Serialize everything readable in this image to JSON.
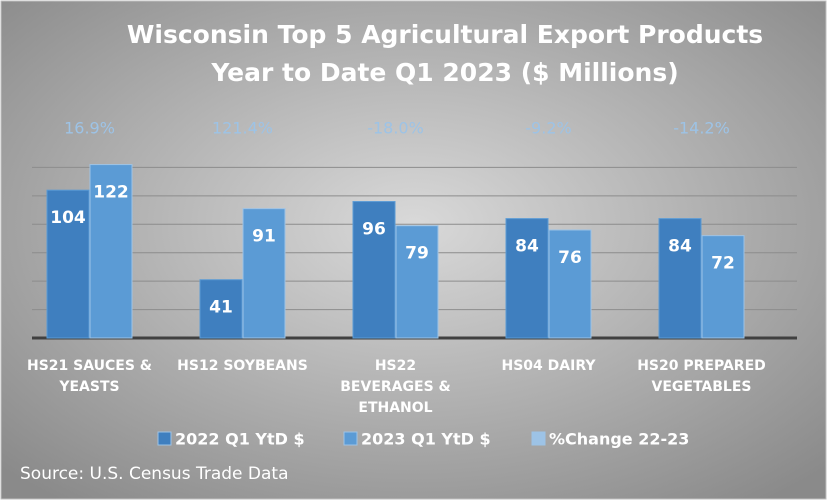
{
  "chart_data": {
    "type": "bar",
    "title": [
      "Wisconsin Top 5 Agricultural Export Products",
      "Year to Date Q1 2023  ($ Millions)"
    ],
    "categories": [
      "HS21 SAUCES & YEASTS",
      "HS12 SOYBEANS",
      "HS22 BEVERAGES & ETHANOL",
      "HS04 DAIRY",
      "HS20 PREPARED VEGETABLES"
    ],
    "series": [
      {
        "name": "2022 Q1 YtD $",
        "color": "#3f7fbf",
        "values": [
          104,
          41,
          96,
          84,
          84
        ]
      },
      {
        "name": "2023 Q1 YtD $",
        "color": "#5b9bd5",
        "values": [
          122,
          91,
          79,
          76,
          72
        ]
      },
      {
        "name": "%Change 22-23",
        "color": "#9dc3e6",
        "values": [
          16.9,
          121.4,
          -18.0,
          -9.2,
          -14.2
        ],
        "value_labels": [
          "16.9%",
          "121.4%",
          "-18.0%",
          "-9.2%",
          "-14.2%"
        ]
      }
    ],
    "ylim": [
      0,
      140
    ],
    "yticks": [
      0,
      20,
      40,
      60,
      80,
      100,
      120,
      140
    ],
    "grid": true,
    "legend": "bottom",
    "source": "Source: U.S. Census Trade Data"
  }
}
